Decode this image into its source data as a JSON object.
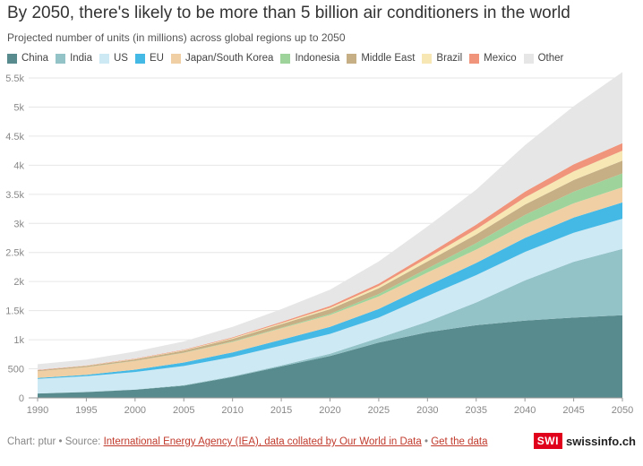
{
  "chart_data": {
    "type": "area",
    "stacked": true,
    "title": "By 2050, there's likely to be more than 5 billion air conditioners in the world",
    "subtitle": "Projected number of units (in millions) across global regions up to 2050",
    "x": [
      1990,
      1995,
      2000,
      2005,
      2010,
      2015,
      2020,
      2025,
      2030,
      2035,
      2040,
      2045,
      2050
    ],
    "x_ticks": [
      "1990",
      "1995",
      "2000",
      "2005",
      "2010",
      "2015",
      "2020",
      "2025",
      "2030",
      "2035",
      "2040",
      "2045",
      "2050"
    ],
    "y_ticks": [
      "0",
      "500",
      "1k",
      "1.5k",
      "2k",
      "2.5k",
      "3k",
      "3.5k",
      "4k",
      "4.5k",
      "5k",
      "5.5k"
    ],
    "y_tick_values": [
      0,
      500,
      1000,
      1500,
      2000,
      2500,
      3000,
      3500,
      4000,
      4500,
      5000,
      5500
    ],
    "ylim": [
      0,
      5500
    ],
    "grid": true,
    "legend_position": "top",
    "series": [
      {
        "name": "China",
        "color": "#578b8d",
        "values": [
          75,
          100,
          140,
          210,
          360,
          540,
          720,
          950,
          1130,
          1250,
          1330,
          1380,
          1420
        ]
      },
      {
        "name": "India",
        "color": "#93c2c7",
        "values": [
          2,
          3,
          5,
          8,
          12,
          20,
          40,
          80,
          180,
          390,
          690,
          960,
          1140
        ]
      },
      {
        "name": "US",
        "color": "#cce9f4",
        "values": [
          250,
          270,
          300,
          330,
          330,
          340,
          340,
          350,
          440,
          470,
          490,
          500,
          520
        ]
      },
      {
        "name": "EU",
        "color": "#45b9e6",
        "values": [
          15,
          25,
          40,
          60,
          80,
          100,
          120,
          150,
          180,
          210,
          240,
          260,
          280
        ]
      },
      {
        "name": "Japan/South Korea",
        "color": "#f0cfa4",
        "values": [
          115,
          130,
          150,
          165,
          180,
          195,
          205,
          215,
          225,
          230,
          235,
          245,
          260
        ]
      },
      {
        "name": "Indonesia",
        "color": "#9ed49b",
        "values": [
          1,
          2,
          3,
          5,
          8,
          12,
          20,
          40,
          70,
          110,
          160,
          200,
          240
        ]
      },
      {
        "name": "Middle East",
        "color": "#c6ae85",
        "values": [
          15,
          20,
          25,
          35,
          45,
          60,
          80,
          100,
          120,
          150,
          180,
          200,
          220
        ]
      },
      {
        "name": "Brazil",
        "color": "#f6e7b4",
        "values": [
          2,
          4,
          6,
          8,
          12,
          18,
          25,
          40,
          60,
          90,
          120,
          150,
          170
        ]
      },
      {
        "name": "Mexico",
        "color": "#f0957c",
        "values": [
          5,
          6,
          8,
          10,
          15,
          20,
          30,
          40,
          60,
          80,
          100,
          120,
          130
        ]
      },
      {
        "name": "Other",
        "color": "#e6e6e6",
        "values": [
          100,
          100,
          120,
          140,
          180,
          220,
          280,
          380,
          480,
          600,
          800,
          1000,
          1220
        ]
      }
    ]
  },
  "footer": {
    "prefix": "Chart: ptur • Source: ",
    "source_link": "International Energy Agency (IEA), data collated by Our World in Data",
    "separator": " • ",
    "get_data_link": "Get the data"
  },
  "brand": {
    "box": "SWI",
    "name": "swissinfo.ch"
  }
}
